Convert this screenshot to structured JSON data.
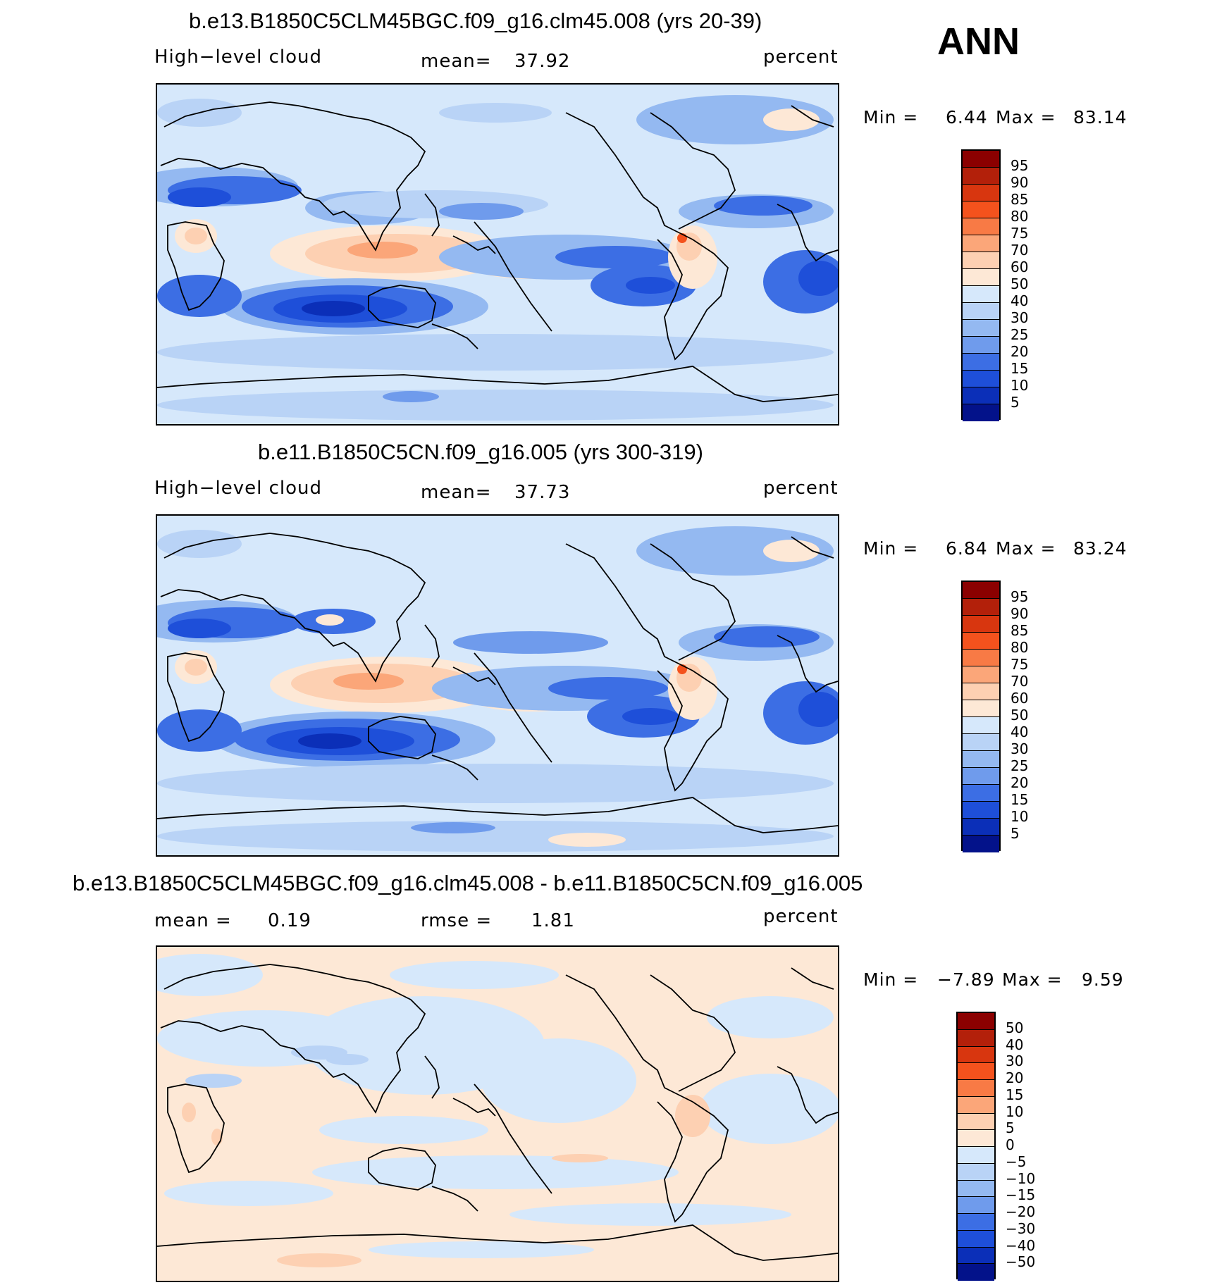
{
  "header": {
    "season": "ANN"
  },
  "panels": [
    {
      "id": "p1",
      "title": "b.e13.B1850C5CLM45BGC.f09_g16.clm45.008 (yrs 20-39)",
      "left_label": "High−level cloud",
      "center_label": "mean=",
      "center_value": "37.92",
      "right_label": "percent",
      "min_label": "Min =",
      "min_value": "6.44",
      "max_label": "Max =",
      "max_value": "83.14",
      "scale": "abs"
    },
    {
      "id": "p2",
      "title": "b.e11.B1850C5CN.f09_g16.005 (yrs 300-319)",
      "left_label": "High−level cloud",
      "center_label": "mean=",
      "center_value": "37.73",
      "right_label": "percent",
      "min_label": "Min =",
      "min_value": "6.84",
      "max_label": "Max =",
      "max_value": "83.24",
      "scale": "abs"
    },
    {
      "id": "p3",
      "title": "b.e13.B1850C5CLM45BGC.f09_g16.clm45.008 - b.e11.B1850C5CN.f09_g16.005",
      "left_label": "mean =",
      "left_value": "0.19",
      "center_label": "rmse =",
      "center_value": "1.81",
      "right_label": "percent",
      "min_label": "Min =",
      "min_value": "−7.89",
      "max_label": "Max =",
      "max_value": "9.59",
      "scale": "diff"
    }
  ],
  "colorbars": {
    "abs": {
      "labels": [
        "95",
        "90",
        "85",
        "80",
        "75",
        "70",
        "60",
        "50",
        "40",
        "30",
        "25",
        "20",
        "15",
        "10",
        "5"
      ],
      "colors": [
        "#8b0000",
        "#b3200a",
        "#d8360f",
        "#f4521d",
        "#f87a45",
        "#fba679",
        "#fdd0b2",
        "#fde8d6",
        "#d6e8fb",
        "#b9d3f6",
        "#94b9f1",
        "#6f9bec",
        "#3c6ee4",
        "#1e4fd9",
        "#0b2fb8",
        "#03128a"
      ]
    },
    "diff": {
      "labels": [
        "50",
        "40",
        "30",
        "20",
        "15",
        "10",
        "5",
        "0",
        "−5",
        "−10",
        "−15",
        "−20",
        "−30",
        "−40",
        "−50"
      ],
      "colors": [
        "#8b0000",
        "#b3200a",
        "#d8360f",
        "#f4521d",
        "#f87a45",
        "#fba679",
        "#fdd0b2",
        "#fde8d6",
        "#d6e8fb",
        "#b9d3f6",
        "#94b9f1",
        "#6f9bec",
        "#3c6ee4",
        "#1e4fd9",
        "#0b2fb8",
        "#03128a"
      ]
    }
  }
}
